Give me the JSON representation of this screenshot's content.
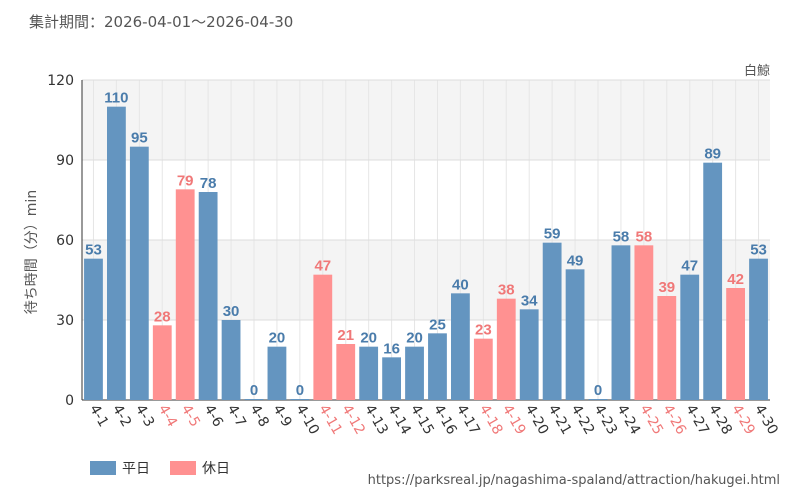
{
  "header": {
    "period": "集計期間：2026-04-01～2026-04-30"
  },
  "attraction_name": "白鯨",
  "source_url": "https://parksreal.jp/nagashima-spaland/attraction/hakugei.html",
  "legend": [
    {
      "label": "平日",
      "color": "#6495c0"
    },
    {
      "label": "休日",
      "color": "#ff9191"
    }
  ],
  "colors": {
    "weekday": "#6495c0",
    "holiday": "#ff9191",
    "weekday_text": "#4a7cab",
    "holiday_text": "#f07878",
    "band": "#f4f4f4"
  },
  "chart_data": {
    "type": "bar",
    "title": "",
    "xlabel": "",
    "ylabel": "待ち時間（分）min",
    "ylim": [
      0,
      120
    ],
    "yticks": [
      0,
      30,
      60,
      90,
      120
    ],
    "grid": true,
    "legend_position": "bottom-left",
    "categories": [
      "4-1",
      "4-2",
      "4-3",
      "4-4",
      "4-5",
      "4-6",
      "4-7",
      "4-8",
      "4-9",
      "4-10",
      "4-11",
      "4-12",
      "4-13",
      "4-14",
      "4-15",
      "4-16",
      "4-17",
      "4-18",
      "4-19",
      "4-20",
      "4-21",
      "4-22",
      "4-23",
      "4-24",
      "4-25",
      "4-26",
      "4-27",
      "4-28",
      "4-29",
      "4-30"
    ],
    "values": [
      53,
      110,
      95,
      28,
      79,
      78,
      30,
      0,
      20,
      0,
      47,
      21,
      20,
      16,
      20,
      25,
      40,
      23,
      38,
      34,
      59,
      49,
      0,
      58,
      58,
      39,
      47,
      89,
      42,
      53
    ],
    "day_type": [
      "平日",
      "平日",
      "平日",
      "休日",
      "休日",
      "平日",
      "平日",
      "平日",
      "平日",
      "平日",
      "休日",
      "休日",
      "平日",
      "平日",
      "平日",
      "平日",
      "平日",
      "休日",
      "休日",
      "平日",
      "平日",
      "平日",
      "平日",
      "平日",
      "休日",
      "休日",
      "平日",
      "平日",
      "休日",
      "平日"
    ]
  }
}
